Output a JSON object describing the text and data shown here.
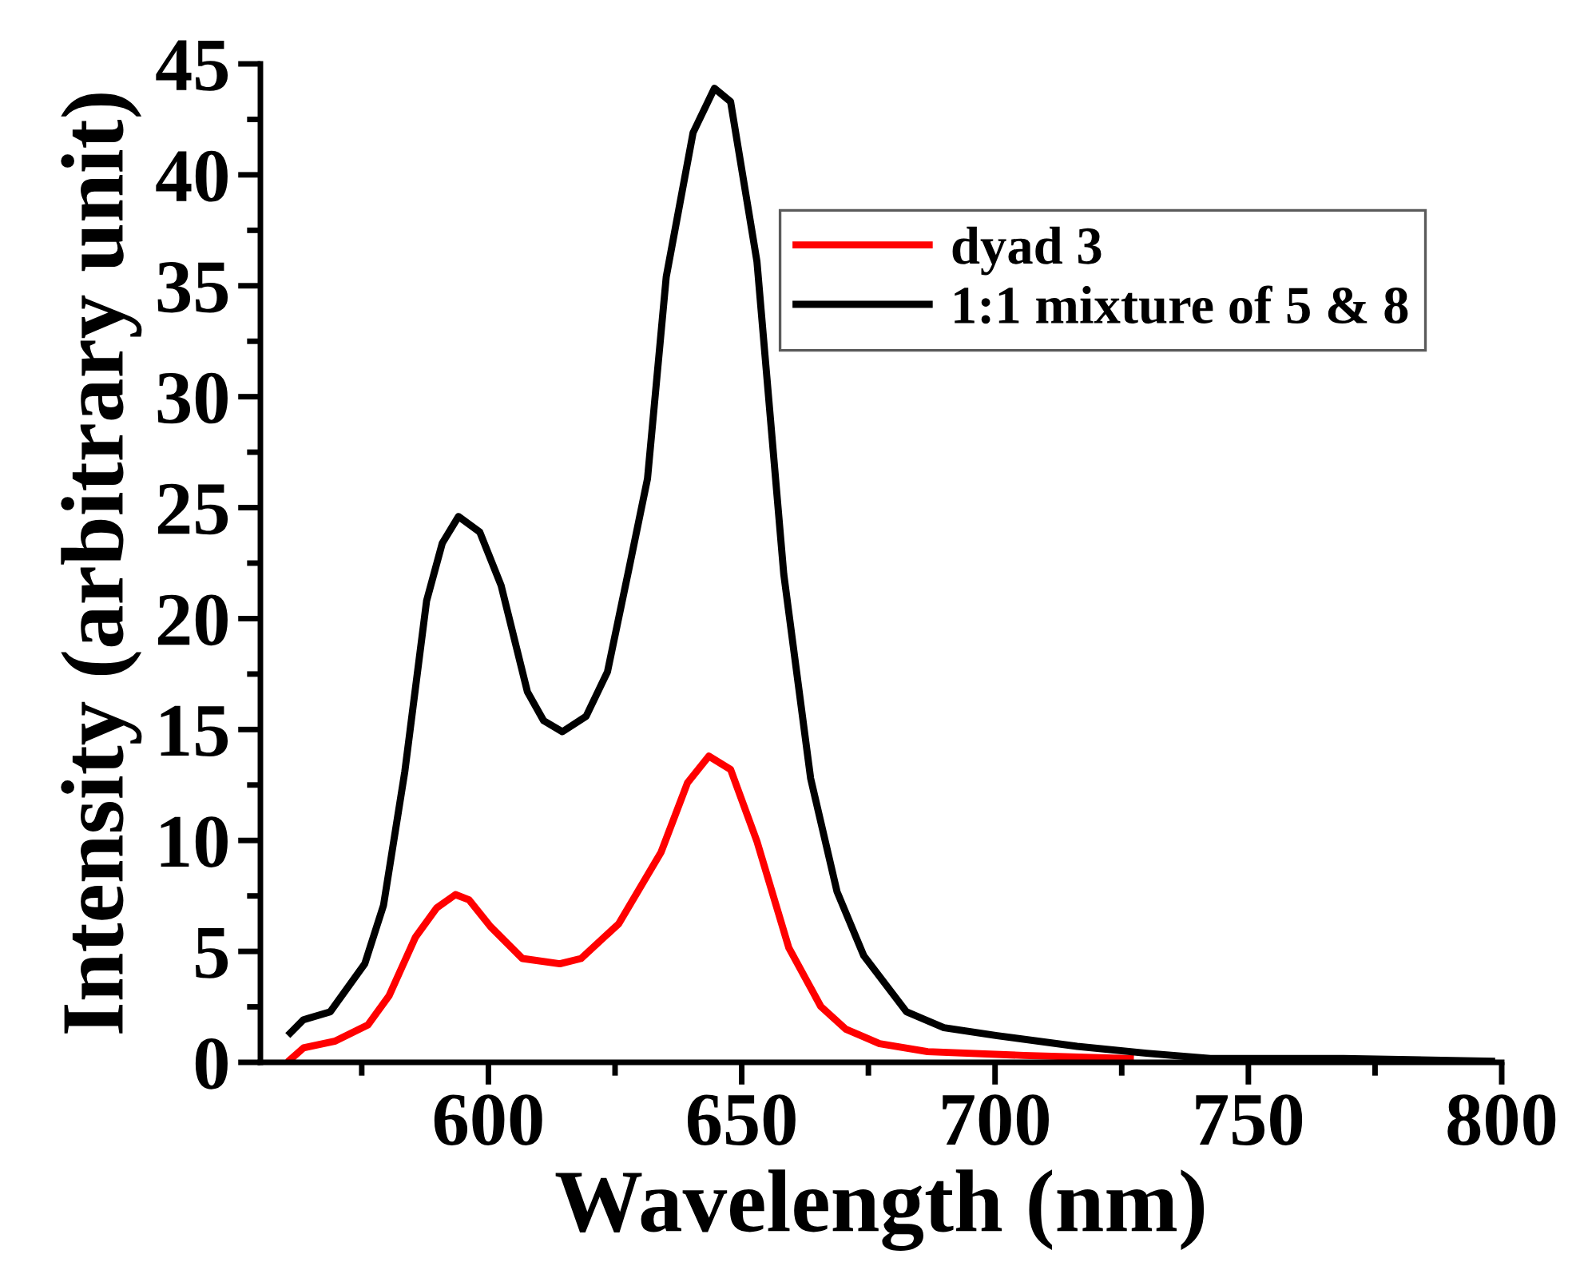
{
  "chart_data": {
    "type": "line",
    "xlabel": "Wavelength (nm)",
    "ylabel": "Intensity (arbitrary unit)",
    "xlim": [
      555,
      800
    ],
    "xticks": [
      600,
      650,
      700,
      750,
      800
    ],
    "ylim": [
      0,
      45
    ],
    "yticks": [
      0,
      5,
      10,
      15,
      20,
      25,
      30,
      35,
      40,
      45
    ],
    "grid": false,
    "legend": "top right",
    "marker": "none",
    "line_style": "solid",
    "series": [
      {
        "name": "dyad 3",
        "color": "#ff0000",
        "x": [
          560.9,
          563.5,
          569.8,
          576.2,
          580.4,
          585.6,
          589.8,
          593.5,
          596.2,
          600.4,
          606.7,
          614.1,
          618.3,
          625.7,
          634.1,
          639.3,
          643.5,
          647.8,
          653.0,
          659.3,
          665.6,
          670.5,
          674.1,
          677.2,
          686.7,
          705.7,
          726.7
        ],
        "values": [
          0.12,
          0.65,
          0.96,
          1.68,
          3.0,
          5.64,
          6.96,
          7.56,
          7.32,
          6.12,
          4.68,
          4.44,
          4.68,
          6.24,
          9.48,
          12.6,
          13.8,
          13.2,
          9.96,
          5.16,
          2.52,
          1.5,
          1.15,
          0.84,
          0.48,
          0.31,
          0.17
        ]
      },
      {
        "name": "1:1 mixture of 5 & 8",
        "color": "#000000",
        "x": [
          560.9,
          563.5,
          568.8,
          575.6,
          579.3,
          583.5,
          587.8,
          590.9,
          594.1,
          598.3,
          602.5,
          607.7,
          610.9,
          614.6,
          619.3,
          623.5,
          627.7,
          631.4,
          635.1,
          640.4,
          644.6,
          647.8,
          653.0,
          658.3,
          663.6,
          668.8,
          674.1,
          682.5,
          689.9,
          700.4,
          716.2,
          729.9,
          742.5,
          768.8,
          798
        ],
        "values": [
          1.32,
          1.92,
          2.28,
          4.44,
          7.08,
          13.1,
          20.8,
          23.4,
          24.6,
          23.9,
          21.5,
          16.7,
          15.4,
          14.9,
          15.6,
          17.6,
          22.2,
          26.3,
          35.4,
          41.9,
          43.9,
          43.3,
          36.1,
          22.0,
          12.8,
          7.7,
          4.8,
          2.28,
          1.56,
          1.2,
          0.72,
          0.41,
          0.17,
          0.17,
          0.05
        ]
      }
    ]
  }
}
